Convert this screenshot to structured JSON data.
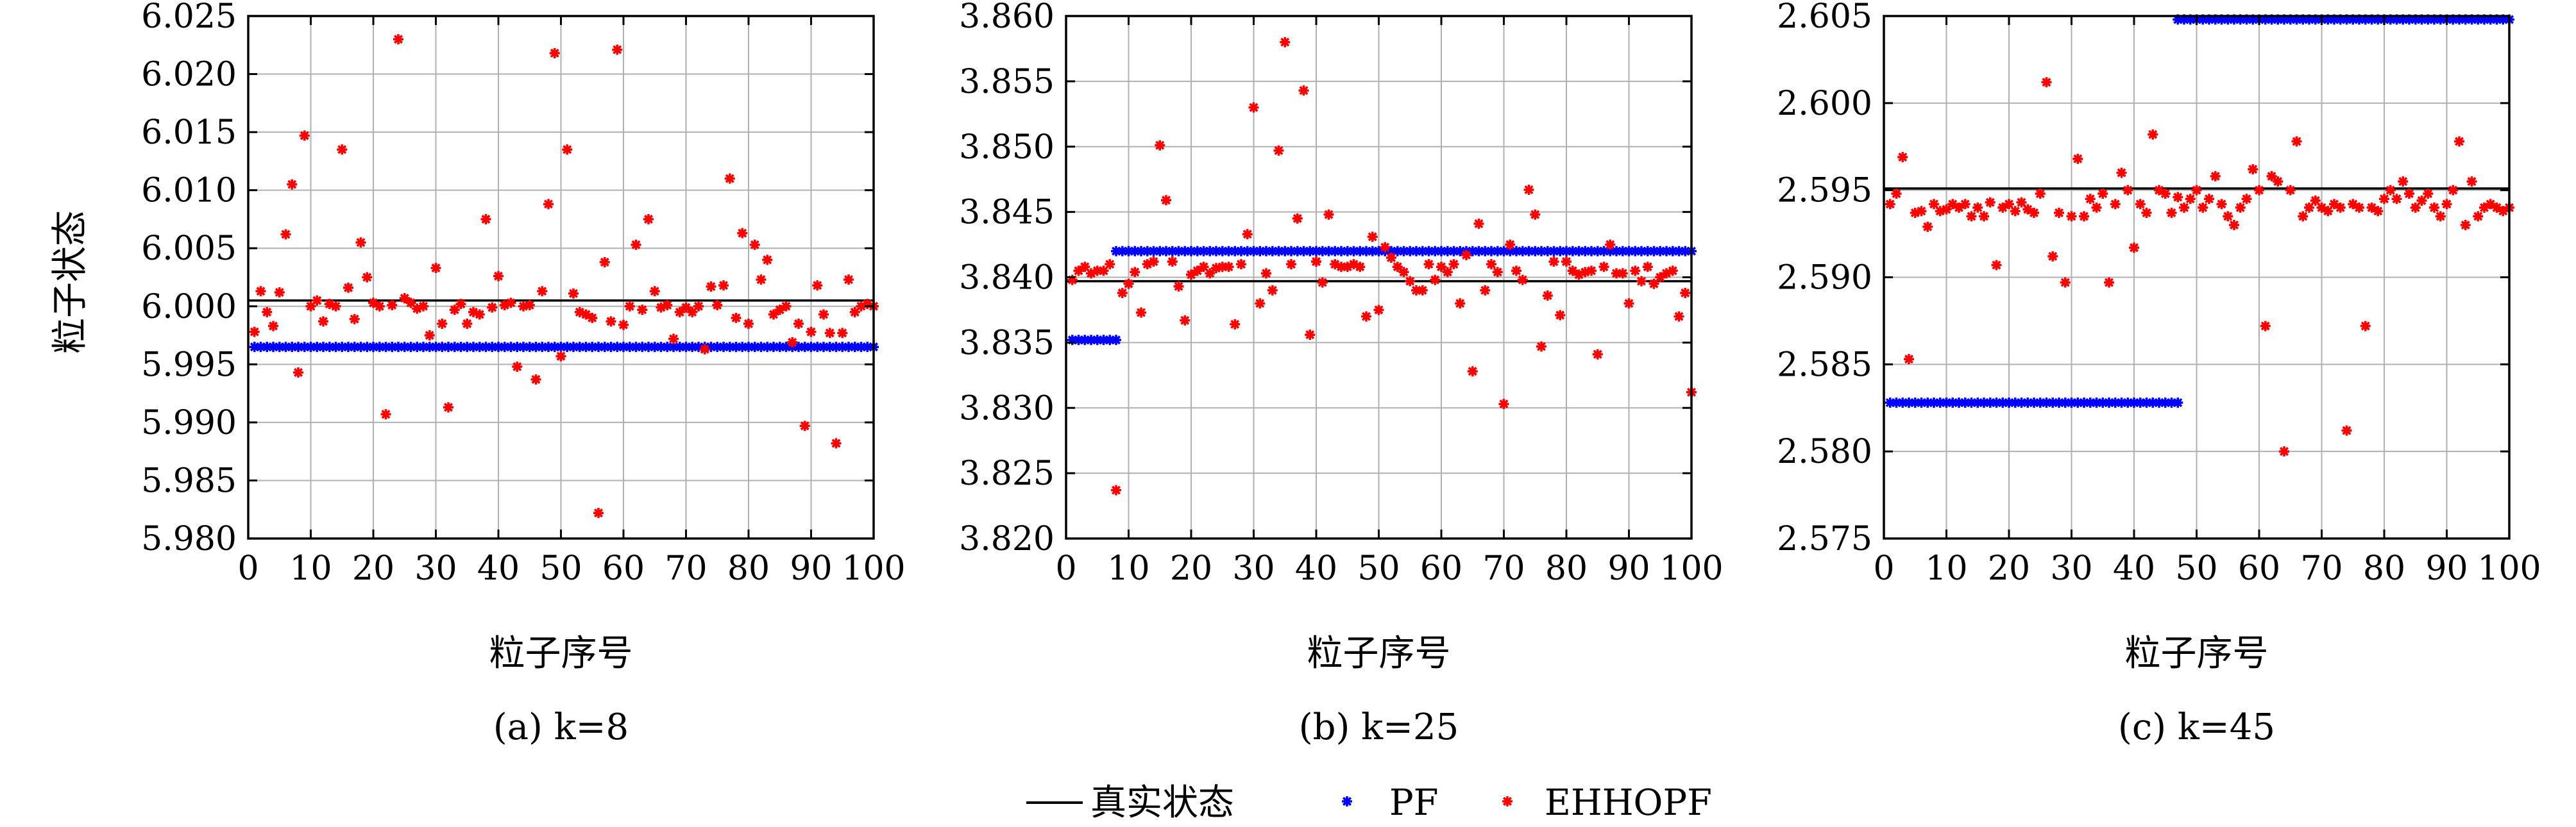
{
  "ylabel": "粒子状态",
  "legend": [
    {
      "symbol": "line",
      "label": "真实状态",
      "color": "#000000"
    },
    {
      "symbol": "star",
      "label": "PF",
      "color": "#0000ff"
    },
    {
      "symbol": "star",
      "label": "EHHOPF",
      "color": "#ff0000"
    }
  ],
  "chart_data": [
    {
      "type": "scatter",
      "caption": "(a) k=8",
      "xlabel": "粒子序号",
      "ylabel": "粒子状态",
      "xlim": [
        0,
        100
      ],
      "ylim": [
        5.98,
        6.025
      ],
      "xticks": [
        0,
        10,
        20,
        30,
        40,
        50,
        60,
        70,
        80,
        90,
        100
      ],
      "yticks": [
        5.98,
        5.985,
        5.99,
        5.995,
        6.0,
        6.005,
        6.01,
        6.015,
        6.02,
        6.025
      ],
      "ytick_labels": [
        "5.980",
        "5.985",
        "5.990",
        "5.995",
        "6.000",
        "6.005",
        "6.010",
        "6.015",
        "6.020",
        "6.025"
      ],
      "grid": true,
      "true_state": 6.0005,
      "pf": [
        {
          "x_range": [
            1,
            100
          ],
          "y": 5.9965
        }
      ],
      "ehhopf": [
        [
          1,
          5.9978
        ],
        [
          2,
          6.0013
        ],
        [
          3,
          5.9995
        ],
        [
          4,
          5.9983
        ],
        [
          5,
          6.0012
        ],
        [
          6,
          6.0062
        ],
        [
          7,
          6.0105
        ],
        [
          8,
          5.9943
        ],
        [
          9,
          6.0147
        ],
        [
          10,
          6.0
        ],
        [
          11,
          6.0005
        ],
        [
          12,
          5.9987
        ],
        [
          13,
          6.0002
        ],
        [
          14,
          6.0
        ],
        [
          15,
          6.0135
        ],
        [
          16,
          6.0016
        ],
        [
          17,
          5.9989
        ],
        [
          18,
          6.0055
        ],
        [
          19,
          6.0025
        ],
        [
          20,
          6.0003
        ],
        [
          21,
          6.0
        ],
        [
          22,
          5.9907
        ],
        [
          23,
          6.0001
        ],
        [
          24,
          6.023
        ],
        [
          25,
          6.0007
        ],
        [
          26,
          6.0003
        ],
        [
          27,
          5.9998
        ],
        [
          28,
          6.0
        ],
        [
          29,
          5.9975
        ],
        [
          30,
          6.0033
        ],
        [
          31,
          5.9985
        ],
        [
          32,
          5.9913
        ],
        [
          33,
          5.9997
        ],
        [
          34,
          6.0002
        ],
        [
          35,
          5.9985
        ],
        [
          36,
          5.9995
        ],
        [
          37,
          5.9993
        ],
        [
          38,
          6.0075
        ],
        [
          39,
          5.9999
        ],
        [
          40,
          6.0026
        ],
        [
          41,
          6.0001
        ],
        [
          42,
          6.0003
        ],
        [
          43,
          5.9948
        ],
        [
          44,
          6.0
        ],
        [
          45,
          6.0001
        ],
        [
          46,
          5.9937
        ],
        [
          47,
          6.0013
        ],
        [
          48,
          6.0088
        ],
        [
          49,
          6.0218
        ],
        [
          50,
          5.9957
        ],
        [
          51,
          6.0135
        ],
        [
          52,
          6.0011
        ],
        [
          53,
          5.9995
        ],
        [
          54,
          5.9993
        ],
        [
          55,
          5.999
        ],
        [
          56,
          5.9822
        ],
        [
          57,
          6.0038
        ],
        [
          58,
          5.9987
        ],
        [
          59,
          6.0221
        ],
        [
          60,
          5.9984
        ],
        [
          61,
          6.0
        ],
        [
          62,
          6.0053
        ],
        [
          63,
          5.9997
        ],
        [
          64,
          6.0075
        ],
        [
          65,
          6.0013
        ],
        [
          66,
          5.9999
        ],
        [
          67,
          6.0001
        ],
        [
          68,
          5.9972
        ],
        [
          69,
          5.9995
        ],
        [
          70,
          5.9999
        ],
        [
          71,
          5.9995
        ],
        [
          72,
          6.0
        ],
        [
          73,
          5.9963
        ],
        [
          74,
          6.0017
        ],
        [
          75,
          6.0001
        ],
        [
          76,
          6.0018
        ],
        [
          77,
          6.011
        ],
        [
          78,
          5.999
        ],
        [
          79,
          6.0063
        ],
        [
          80,
          5.9985
        ],
        [
          81,
          6.0053
        ],
        [
          82,
          6.0023
        ],
        [
          83,
          6.004
        ],
        [
          84,
          5.9993
        ],
        [
          85,
          5.9997
        ],
        [
          86,
          6.0
        ],
        [
          87,
          5.9969
        ],
        [
          88,
          5.9985
        ],
        [
          89,
          5.9897
        ],
        [
          90,
          5.9978
        ],
        [
          91,
          6.0018
        ],
        [
          92,
          5.9993
        ],
        [
          93,
          5.9977
        ],
        [
          94,
          5.9882
        ],
        [
          95,
          5.9977
        ],
        [
          96,
          6.0023
        ],
        [
          97,
          5.9995
        ],
        [
          98,
          6.0
        ],
        [
          99,
          6.0002
        ],
        [
          100,
          6.0
        ]
      ]
    },
    {
      "type": "scatter",
      "caption": "(b) k=25",
      "xlabel": "粒子序号",
      "ylabel": "",
      "xlim": [
        0,
        100
      ],
      "ylim": [
        3.82,
        3.86
      ],
      "xticks": [
        0,
        10,
        20,
        30,
        40,
        50,
        60,
        70,
        80,
        90,
        100
      ],
      "yticks": [
        3.82,
        3.825,
        3.83,
        3.835,
        3.84,
        3.845,
        3.85,
        3.855,
        3.86
      ],
      "ytick_labels": [
        "3.820",
        "3.825",
        "3.830",
        "3.835",
        "3.840",
        "3.845",
        "3.850",
        "3.855",
        "3.860"
      ],
      "grid": true,
      "true_state": 3.8397,
      "pf": [
        {
          "x_range": [
            1,
            8
          ],
          "y": 3.8352
        },
        {
          "x_range": [
            8,
            100
          ],
          "y": 3.842
        }
      ],
      "ehhopf": [
        [
          1,
          3.8398
        ],
        [
          2,
          3.8405
        ],
        [
          3,
          3.8408
        ],
        [
          4,
          3.8403
        ],
        [
          5,
          3.8405
        ],
        [
          6,
          3.8405
        ],
        [
          7,
          3.841
        ],
        [
          8,
          3.8237
        ],
        [
          9,
          3.8388
        ],
        [
          10,
          3.8395
        ],
        [
          11,
          3.8404
        ],
        [
          12,
          3.8373
        ],
        [
          13,
          3.841
        ],
        [
          14,
          3.8412
        ],
        [
          15,
          3.8501
        ],
        [
          16,
          3.8459
        ],
        [
          17,
          3.8412
        ],
        [
          18,
          3.8393
        ],
        [
          19,
          3.8367
        ],
        [
          20,
          3.8402
        ],
        [
          21,
          3.8405
        ],
        [
          22,
          3.8408
        ],
        [
          23,
          3.8403
        ],
        [
          24,
          3.8407
        ],
        [
          25,
          3.8408
        ],
        [
          26,
          3.8408
        ],
        [
          27,
          3.8364
        ],
        [
          28,
          3.841
        ],
        [
          29,
          3.8433
        ],
        [
          30,
          3.853
        ],
        [
          31,
          3.838
        ],
        [
          32,
          3.8403
        ],
        [
          33,
          3.839
        ],
        [
          34,
          3.8497
        ],
        [
          35,
          3.858
        ],
        [
          36,
          3.841
        ],
        [
          37,
          3.8445
        ],
        [
          38,
          3.8543
        ],
        [
          39,
          3.8356
        ],
        [
          40,
          3.8412
        ],
        [
          41,
          3.8396
        ],
        [
          42,
          3.8448
        ],
        [
          43,
          3.841
        ],
        [
          44,
          3.8408
        ],
        [
          45,
          3.8408
        ],
        [
          46,
          3.841
        ],
        [
          47,
          3.8408
        ],
        [
          48,
          3.837
        ],
        [
          49,
          3.8431
        ],
        [
          50,
          3.8375
        ],
        [
          51,
          3.8423
        ],
        [
          52,
          3.8415
        ],
        [
          53,
          3.8408
        ],
        [
          54,
          3.8404
        ],
        [
          55,
          3.8397
        ],
        [
          56,
          3.839
        ],
        [
          57,
          3.839
        ],
        [
          58,
          3.841
        ],
        [
          59,
          3.8398
        ],
        [
          60,
          3.8408
        ],
        [
          61,
          3.8404
        ],
        [
          62,
          3.841
        ],
        [
          63,
          3.838
        ],
        [
          64,
          3.8417
        ],
        [
          65,
          3.8328
        ],
        [
          66,
          3.8441
        ],
        [
          67,
          3.839
        ],
        [
          68,
          3.841
        ],
        [
          69,
          3.8404
        ],
        [
          70,
          3.8303
        ],
        [
          71,
          3.8425
        ],
        [
          72,
          3.8405
        ],
        [
          73,
          3.8398
        ],
        [
          74,
          3.8467
        ],
        [
          75,
          3.8448
        ],
        [
          76,
          3.8347
        ],
        [
          77,
          3.8386
        ],
        [
          78,
          3.8412
        ],
        [
          79,
          3.8371
        ],
        [
          80,
          3.8412
        ],
        [
          81,
          3.8405
        ],
        [
          82,
          3.8402
        ],
        [
          83,
          3.8404
        ],
        [
          84,
          3.8405
        ],
        [
          85,
          3.8341
        ],
        [
          86,
          3.8408
        ],
        [
          87,
          3.8425
        ],
        [
          88,
          3.8403
        ],
        [
          89,
          3.8403
        ],
        [
          90,
          3.838
        ],
        [
          91,
          3.8405
        ],
        [
          92,
          3.8397
        ],
        [
          93,
          3.8408
        ],
        [
          94,
          3.8395
        ],
        [
          95,
          3.84
        ],
        [
          96,
          3.8403
        ],
        [
          97,
          3.8405
        ],
        [
          98,
          3.837
        ],
        [
          99,
          3.8388
        ],
        [
          100,
          3.8312
        ]
      ]
    },
    {
      "type": "scatter",
      "caption": "(c) k=45",
      "xlabel": "粒子序号",
      "ylabel": "",
      "xlim": [
        0,
        100
      ],
      "ylim": [
        2.575,
        2.605
      ],
      "xticks": [
        0,
        10,
        20,
        30,
        40,
        50,
        60,
        70,
        80,
        90,
        100
      ],
      "yticks": [
        2.575,
        2.58,
        2.585,
        2.59,
        2.595,
        2.6,
        2.605
      ],
      "ytick_labels": [
        "2.575",
        "2.580",
        "2.585",
        "2.590",
        "2.595",
        "2.600",
        "2.605"
      ],
      "grid": true,
      "true_state": 2.5951,
      "pf": [
        {
          "x_range": [
            1,
            47
          ],
          "y": 2.5828
        },
        {
          "x_range": [
            47,
            100
          ],
          "y": 2.6048
        }
      ],
      "ehhopf": [
        [
          1,
          2.5942
        ],
        [
          2,
          2.5948
        ],
        [
          3,
          2.5969
        ],
        [
          4,
          2.5853
        ],
        [
          5,
          2.5937
        ],
        [
          6,
          2.5938
        ],
        [
          7,
          2.5929
        ],
        [
          8,
          2.5942
        ],
        [
          9,
          2.5938
        ],
        [
          10,
          2.5939
        ],
        [
          11,
          2.5942
        ],
        [
          12,
          2.594
        ],
        [
          13,
          2.5942
        ],
        [
          14,
          2.5935
        ],
        [
          15,
          2.594
        ],
        [
          16,
          2.5935
        ],
        [
          17,
          2.5943
        ],
        [
          18,
          2.5907
        ],
        [
          19,
          2.594
        ],
        [
          20,
          2.5942
        ],
        [
          21,
          2.5938
        ],
        [
          22,
          2.5943
        ],
        [
          23,
          2.5939
        ],
        [
          24,
          2.5937
        ],
        [
          25,
          2.5948
        ],
        [
          26,
          2.6012
        ],
        [
          27,
          2.5912
        ],
        [
          28,
          2.5937
        ],
        [
          29,
          2.5897
        ],
        [
          30,
          2.5935
        ],
        [
          31,
          2.5968
        ],
        [
          32,
          2.5935
        ],
        [
          33,
          2.5945
        ],
        [
          34,
          2.594
        ],
        [
          35,
          2.5948
        ],
        [
          36,
          2.5897
        ],
        [
          37,
          2.5942
        ],
        [
          38,
          2.596
        ],
        [
          39,
          2.595
        ],
        [
          40,
          2.5917
        ],
        [
          41,
          2.5942
        ],
        [
          42,
          2.5937
        ],
        [
          43,
          2.5982
        ],
        [
          44,
          2.595
        ],
        [
          45,
          2.5948
        ],
        [
          46,
          2.5937
        ],
        [
          47,
          2.5946
        ],
        [
          48,
          2.594
        ],
        [
          49,
          2.5945
        ],
        [
          50,
          2.595
        ],
        [
          51,
          2.594
        ],
        [
          52,
          2.5945
        ],
        [
          53,
          2.5958
        ],
        [
          54,
          2.5942
        ],
        [
          55,
          2.5935
        ],
        [
          56,
          2.593
        ],
        [
          57,
          2.594
        ],
        [
          58,
          2.5945
        ],
        [
          59,
          2.5962
        ],
        [
          60,
          2.595
        ],
        [
          61,
          2.5872
        ],
        [
          62,
          2.5958
        ],
        [
          63,
          2.5955
        ],
        [
          64,
          2.58
        ],
        [
          65,
          2.595
        ],
        [
          66,
          2.5978
        ],
        [
          67,
          2.5935
        ],
        [
          68,
          2.594
        ],
        [
          69,
          2.5944
        ],
        [
          70,
          2.594
        ],
        [
          71,
          2.5938
        ],
        [
          72,
          2.5942
        ],
        [
          73,
          2.594
        ],
        [
          74,
          2.5812
        ],
        [
          75,
          2.5942
        ],
        [
          76,
          2.594
        ],
        [
          77,
          2.5872
        ],
        [
          78,
          2.594
        ],
        [
          79,
          2.5938
        ],
        [
          80,
          2.5945
        ],
        [
          81,
          2.595
        ],
        [
          82,
          2.5945
        ],
        [
          83,
          2.5955
        ],
        [
          84,
          2.5948
        ],
        [
          85,
          2.594
        ],
        [
          86,
          2.5944
        ],
        [
          87,
          2.5948
        ],
        [
          88,
          2.594
        ],
        [
          89,
          2.5935
        ],
        [
          90,
          2.5942
        ],
        [
          91,
          2.595
        ],
        [
          92,
          2.5978
        ],
        [
          93,
          2.593
        ],
        [
          94,
          2.5955
        ],
        [
          95,
          2.5935
        ],
        [
          96,
          2.594
        ],
        [
          97,
          2.5942
        ],
        [
          98,
          2.594
        ],
        [
          99,
          2.5938
        ],
        [
          100,
          2.594
        ]
      ]
    }
  ]
}
